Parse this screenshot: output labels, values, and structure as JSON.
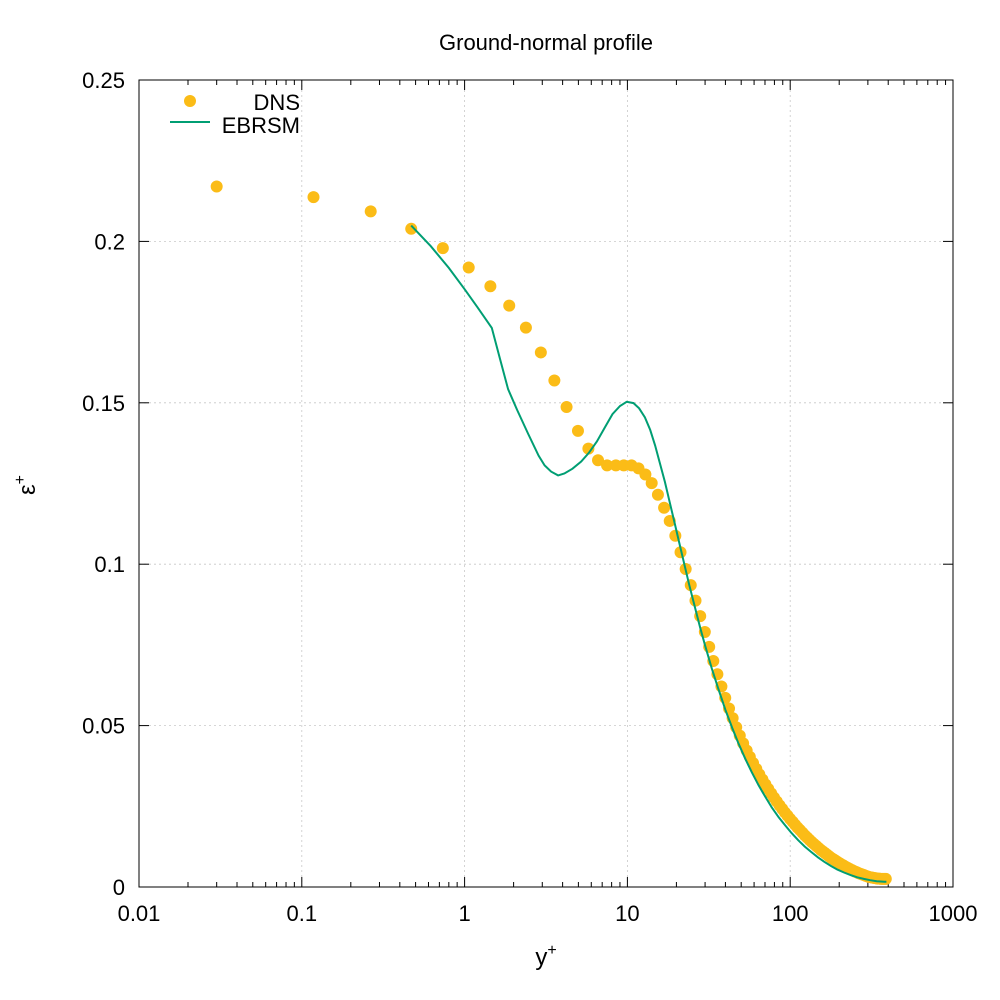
{
  "chart_data": {
    "type": "line",
    "title": "Ground-normal profile",
    "xlabel": "y",
    "xlabel_sup": "+",
    "ylabel": "ε",
    "ylabel_sup": "+",
    "x_scale": "log",
    "xlim": [
      0.01,
      1000
    ],
    "ylim": [
      0,
      0.25
    ],
    "xticks": [
      0.01,
      0.1,
      1,
      10,
      100,
      1000
    ],
    "xtick_labels": [
      "0.01",
      "0.1",
      "1",
      "10",
      "100",
      "1000"
    ],
    "yticks": [
      0,
      0.05,
      0.1,
      0.15,
      0.2,
      0.25
    ],
    "ytick_labels": [
      "0",
      "0.05",
      "0.1",
      "0.15",
      "0.2",
      "0.25"
    ],
    "grid": true,
    "legend_position": "top-left",
    "series": [
      {
        "name": "DNS",
        "style": "points",
        "color": "#fbbc17",
        "x": [
          0.03,
          0.118,
          0.265,
          0.47,
          0.735,
          1.06,
          1.44,
          1.88,
          2.38,
          2.94,
          3.56,
          4.23,
          4.97,
          5.76,
          6.6,
          7.5,
          8.5,
          9.5,
          10.6,
          11.7,
          12.9,
          14.1,
          15.4,
          16.8,
          18.2,
          19.7,
          21.2,
          22.8,
          24.5,
          26.2,
          28.0,
          29.9,
          31.8,
          33.7,
          35.7,
          37.8,
          39.9,
          42.1,
          44.3,
          46.6,
          49.0,
          51.4,
          54.0,
          56.5,
          59.1,
          61.9,
          64.6,
          67.5,
          70.4,
          73.3,
          76.4,
          79.5,
          82.7,
          86.0,
          89.3,
          92.7,
          96.2,
          99.8,
          103.5,
          107.2,
          111.0,
          115.0,
          119.0,
          123.0,
          127.2,
          131.4,
          135.8,
          140.2,
          144.7,
          149.3,
          154.0,
          158.8,
          163.7,
          168.7,
          173.7,
          178.9,
          184.2,
          189.5,
          195.0,
          200.6,
          206.3,
          212.1,
          218.0,
          224.0,
          230.1,
          236.3,
          242.7,
          249.2,
          255.8,
          262.5,
          269.3,
          276.3,
          283.3,
          290.5,
          297.8,
          305.2,
          312.8,
          320.5,
          328.3,
          336.2,
          344.3,
          352.5,
          360.8,
          369.2,
          377.8,
          386.5
        ],
        "y": [
          0.217,
          0.2137,
          0.2093,
          0.2039,
          0.1979,
          0.1919,
          0.1861,
          0.1801,
          0.1733,
          0.1656,
          0.1569,
          0.1487,
          0.1413,
          0.1358,
          0.1322,
          0.1306,
          0.1306,
          0.1306,
          0.1306,
          0.1297,
          0.1278,
          0.1251,
          0.1215,
          0.1175,
          0.1134,
          0.1088,
          0.1037,
          0.0985,
          0.0935,
          0.0887,
          0.0839,
          0.079,
          0.0744,
          0.07,
          0.0659,
          0.0621,
          0.0586,
          0.0553,
          0.0523,
          0.0495,
          0.0469,
          0.0445,
          0.0423,
          0.0403,
          0.0384,
          0.0366,
          0.0349,
          0.0333,
          0.0318,
          0.0304,
          0.029,
          0.0277,
          0.0265,
          0.0253,
          0.0242,
          0.0231,
          0.0221,
          0.0211,
          0.0202,
          0.0193,
          0.0184,
          0.0176,
          0.0168,
          0.016,
          0.0153,
          0.0146,
          0.0139,
          0.0133,
          0.0127,
          0.0121,
          0.0115,
          0.011,
          0.0105,
          0.01,
          0.0095,
          0.009,
          0.0086,
          0.0082,
          0.0078,
          0.0074,
          0.007,
          0.0067,
          0.0063,
          0.006,
          0.0057,
          0.0054,
          0.0051,
          0.0048,
          0.0046,
          0.0043,
          0.0041,
          0.0039,
          0.0037,
          0.0035,
          0.0033,
          0.0031,
          0.003,
          0.0029,
          0.0028,
          0.0027,
          0.0026,
          0.0026,
          0.0025,
          0.0025,
          0.0025,
          0.0025
        ]
      },
      {
        "name": "EBRSM",
        "style": "line",
        "color": "#009e73",
        "x": [
          0.47,
          0.62,
          0.8,
          1.0,
          1.2,
          1.47,
          1.65,
          1.85,
          2.1,
          2.45,
          2.85,
          3.1,
          3.4,
          3.75,
          4.1,
          4.6,
          5.2,
          5.8,
          6.5,
          7.3,
          8.1,
          9.0,
          9.9,
          10.9,
          11.8,
          12.8,
          13.8,
          14.8,
          15.8,
          17.0,
          18.2,
          19.5,
          21.0,
          22.5,
          24.0,
          26.0,
          28.0,
          30.0,
          33.0,
          36.0,
          40.0,
          44.0,
          48.0,
          53.0,
          58.0,
          64.0,
          70.0,
          77.0,
          85.0,
          93.0,
          102.0,
          112.0,
          123.0,
          135.0,
          148.0,
          162.0,
          178.0,
          195.0,
          214.0,
          235.0,
          258.0,
          283.0,
          310.0,
          340.0,
          360.0,
          378.0,
          390.0
        ],
        "y": [
          0.2049,
          0.1985,
          0.1918,
          0.1852,
          0.1796,
          0.1732,
          0.1636,
          0.1542,
          0.1478,
          0.1405,
          0.1336,
          0.1306,
          0.1287,
          0.1275,
          0.1281,
          0.1296,
          0.1318,
          0.1345,
          0.138,
          0.1425,
          0.1465,
          0.149,
          0.1503,
          0.1499,
          0.1483,
          0.1455,
          0.1416,
          0.1368,
          0.1315,
          0.1255,
          0.1192,
          0.1128,
          0.1058,
          0.0995,
          0.0935,
          0.0866,
          0.0803,
          0.0748,
          0.0677,
          0.0617,
          0.0549,
          0.0493,
          0.0446,
          0.0397,
          0.0356,
          0.0315,
          0.0281,
          0.0247,
          0.0216,
          0.0191,
          0.0167,
          0.0145,
          0.0125,
          0.0108,
          0.0092,
          0.0078,
          0.0065,
          0.0054,
          0.0045,
          0.0037,
          0.003,
          0.0025,
          0.0021,
          0.0018,
          0.0017,
          0.0016,
          0.0016
        ]
      }
    ]
  }
}
